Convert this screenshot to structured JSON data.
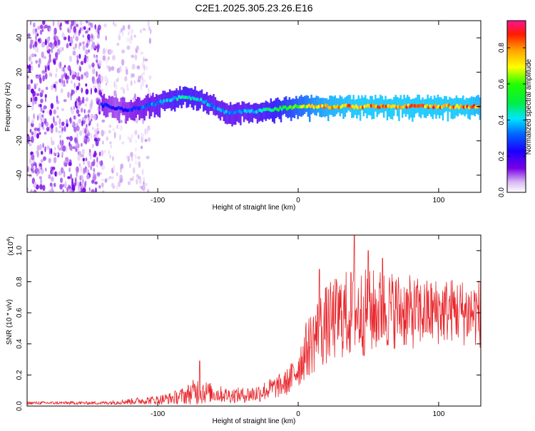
{
  "title": "C2E1.2025.305.23.26.E16",
  "chart_data": [
    {
      "type": "heatmap",
      "name": "spectrogram",
      "xlabel": "Height of straight line (km)",
      "ylabel": "Frequency (Hz)",
      "xlim": [
        -193,
        130
      ],
      "ylim": [
        -50,
        50
      ],
      "xticks": [
        -100,
        0,
        100
      ],
      "xtick_labels": [
        "-100",
        "0",
        "100"
      ],
      "yticks": [
        -40,
        -20,
        0,
        20,
        40
      ],
      "ytick_labels": [
        "-40",
        "-20",
        "0",
        "20",
        "40"
      ],
      "colorbar": {
        "label": "Normalized spectral amplitude",
        "range": [
          0,
          0.95
        ],
        "ticks": [
          0.0,
          0.2,
          0.4,
          0.6,
          0.8
        ],
        "tick_labels": [
          "0.0",
          "0.2",
          "0.4",
          "0.6",
          "0.8"
        ],
        "colormap": "rainbow (white-purple-blue-cyan-green-yellow-orange-red-magenta)"
      },
      "ridge": {
        "description": "signal ridge near 0 Hz",
        "x": [
          -140,
          -130,
          -120,
          -110,
          -100,
          -90,
          -80,
          -70,
          -60,
          -50,
          -40,
          -30,
          -20,
          -10,
          0,
          10,
          20,
          40,
          60,
          80,
          100,
          120,
          130
        ],
        "freq_hz": [
          1,
          -1,
          -2,
          0,
          2,
          4,
          6,
          4,
          0,
          -4,
          -3,
          -3,
          -2,
          -1,
          0,
          0,
          0,
          0,
          0,
          0,
          0,
          0,
          0
        ],
        "amplitude": [
          0.3,
          0.25,
          0.3,
          0.35,
          0.4,
          0.45,
          0.5,
          0.45,
          0.4,
          0.4,
          0.4,
          0.45,
          0.5,
          0.6,
          0.7,
          0.8,
          0.85,
          0.9,
          0.9,
          0.9,
          0.9,
          0.9,
          0.85
        ]
      },
      "noise_regions": [
        {
          "x_from": -193,
          "x_to": -140,
          "freq_from": -50,
          "freq_to": 50,
          "amplitude": 0.1
        },
        {
          "x_from": -140,
          "x_to": -105,
          "freq_from": -50,
          "freq_to": 50,
          "amplitude": 0.05
        }
      ]
    },
    {
      "type": "line",
      "name": "snr",
      "xlabel": "Height of straight line (km)",
      "ylabel": "SNR (10 * v/v)",
      "scale_note_base": "(x10",
      "scale_note_exp": "4",
      "scale_note_close": ")",
      "xlim": [
        -193,
        130
      ],
      "ylim": [
        0,
        1.1
      ],
      "xticks": [
        -100,
        0,
        100
      ],
      "xtick_labels": [
        "-100",
        "0",
        "100"
      ],
      "yticks": [
        0.0,
        0.2,
        0.4,
        0.6,
        0.8,
        1.0
      ],
      "ytick_labels": [
        "0.0",
        "0.2",
        "0.4",
        "0.6",
        "0.8",
        "1.0"
      ],
      "series_color": "#e8262b",
      "envelope": {
        "x": [
          -193,
          -160,
          -140,
          -120,
          -100,
          -90,
          -80,
          -75,
          -70,
          -65,
          -60,
          -50,
          -40,
          -30,
          -20,
          -10,
          -5,
          0,
          5,
          10,
          15,
          20,
          25,
          30,
          40,
          50,
          60,
          70,
          80,
          90,
          100,
          110,
          120,
          130
        ],
        "mean": [
          0.02,
          0.02,
          0.02,
          0.03,
          0.04,
          0.05,
          0.07,
          0.09,
          0.1,
          0.09,
          0.08,
          0.07,
          0.07,
          0.08,
          0.11,
          0.14,
          0.18,
          0.25,
          0.35,
          0.42,
          0.48,
          0.52,
          0.55,
          0.58,
          0.6,
          0.6,
          0.62,
          0.62,
          0.6,
          0.6,
          0.61,
          0.62,
          0.6,
          0.6
        ],
        "spread": [
          0.01,
          0.01,
          0.01,
          0.02,
          0.03,
          0.04,
          0.06,
          0.08,
          0.1,
          0.07,
          0.06,
          0.05,
          0.05,
          0.06,
          0.07,
          0.08,
          0.1,
          0.14,
          0.18,
          0.22,
          0.25,
          0.26,
          0.27,
          0.28,
          0.3,
          0.28,
          0.27,
          0.25,
          0.24,
          0.22,
          0.22,
          0.21,
          0.22,
          0.23
        ]
      },
      "peaks": [
        {
          "x": -70,
          "y": 0.29
        },
        {
          "x": 40,
          "y": 1.1
        },
        {
          "x": 50,
          "y": 1.0
        },
        {
          "x": 60,
          "y": 0.95
        },
        {
          "x": 15,
          "y": 0.88
        }
      ]
    }
  ]
}
